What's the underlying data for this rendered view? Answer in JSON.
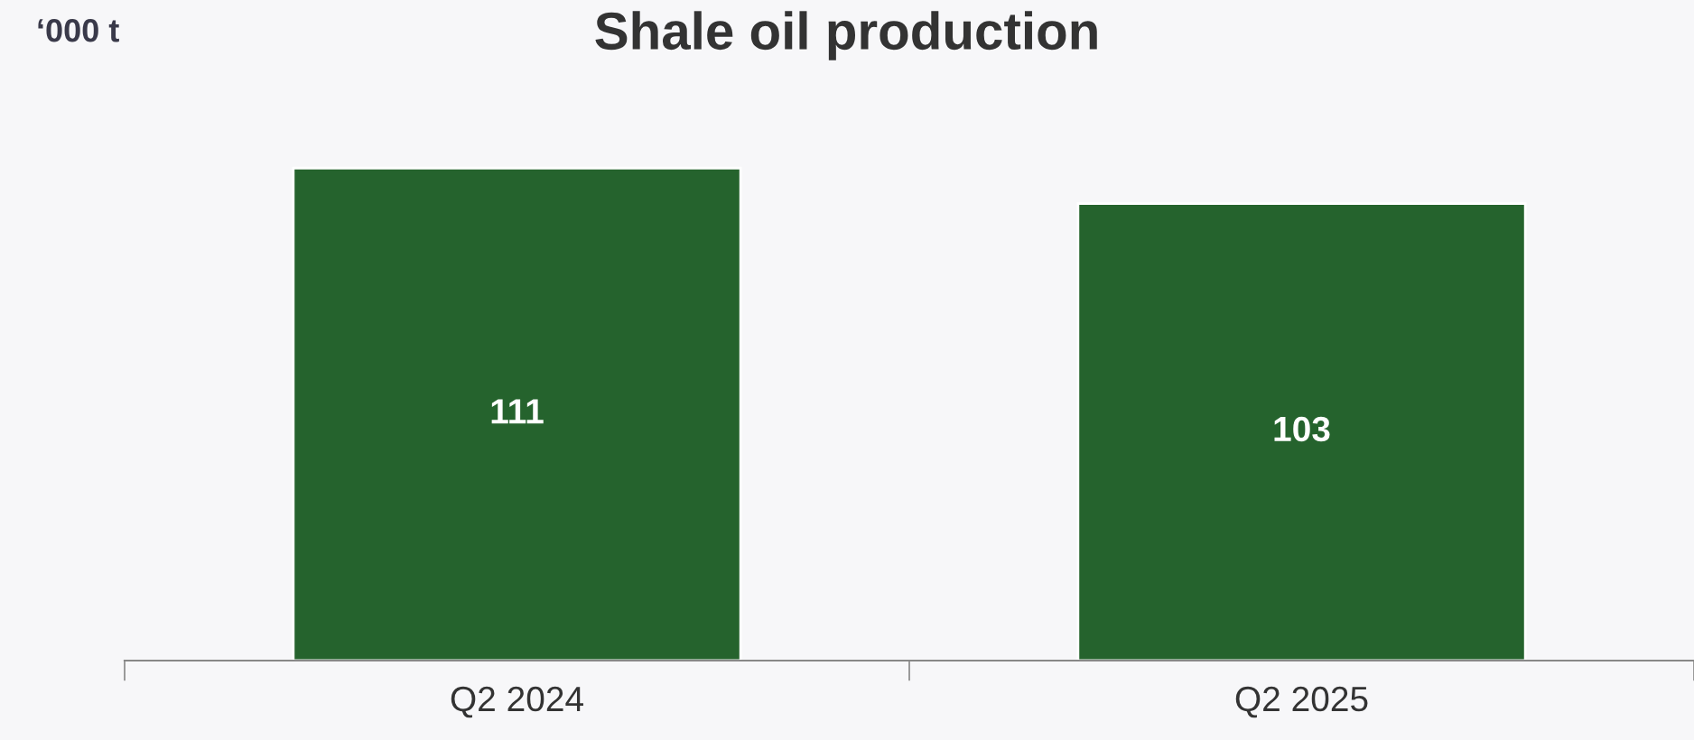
{
  "chart_data": {
    "type": "bar",
    "title": "Shale oil production",
    "ylabel": "‘000 t",
    "categories": [
      "Q2 2024",
      "Q2 2025"
    ],
    "values": [
      111,
      103
    ],
    "color": "#25632d",
    "data_labels": true,
    "grid": false,
    "legend": false,
    "tick_labels": "x"
  }
}
